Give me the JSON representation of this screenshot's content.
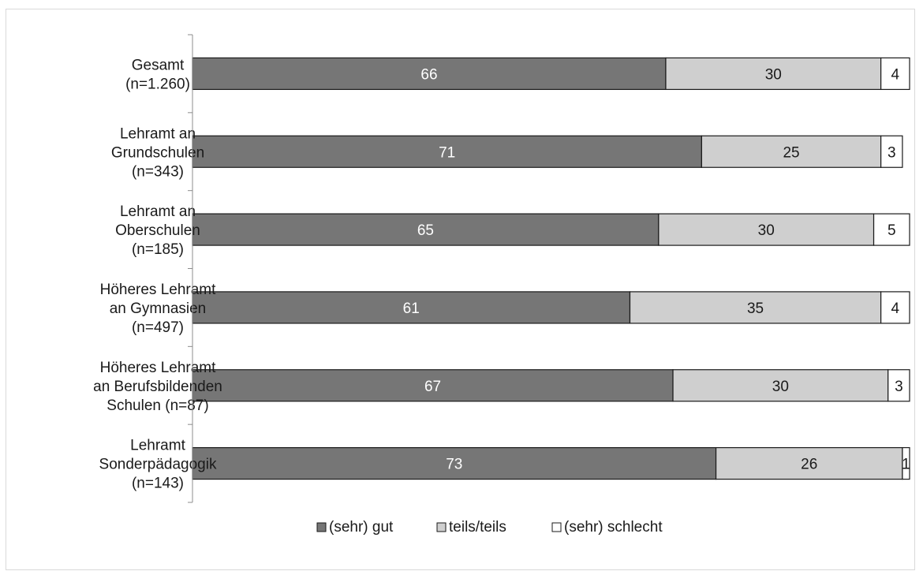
{
  "chart_data": {
    "type": "bar",
    "orientation": "horizontal",
    "stacked": true,
    "categories": [
      [
        "Gesamt",
        "(n=1.260)"
      ],
      [
        "Lehramt an",
        "Grundschulen",
        "(n=343)"
      ],
      [
        "Lehramt an",
        "Oberschulen",
        "(n=185)"
      ],
      [
        "Höheres Lehramt",
        "an Gymnasien",
        "(n=497)"
      ],
      [
        "Höheres Lehramt",
        "an Berufsbildenden",
        "Schulen (n=87)"
      ],
      [
        "Lehramt",
        "Sonderpädagogik",
        "(n=143)"
      ]
    ],
    "series": [
      {
        "name": "(sehr) gut",
        "color": "#767676",
        "label_color": "#ffffff",
        "values": [
          66,
          71,
          65,
          61,
          67,
          73
        ]
      },
      {
        "name": "teils/teils",
        "color": "#cfcfcf",
        "label_color": "#1a1a1a",
        "values": [
          30,
          25,
          30,
          35,
          30,
          26
        ]
      },
      {
        "name": "(sehr) schlecht",
        "color": "#ffffff",
        "label_color": "#1a1a1a",
        "values": [
          4,
          3,
          5,
          4,
          3,
          1
        ]
      }
    ],
    "xlim": [
      0,
      100
    ],
    "grid": false,
    "legend_position": "bottom"
  }
}
